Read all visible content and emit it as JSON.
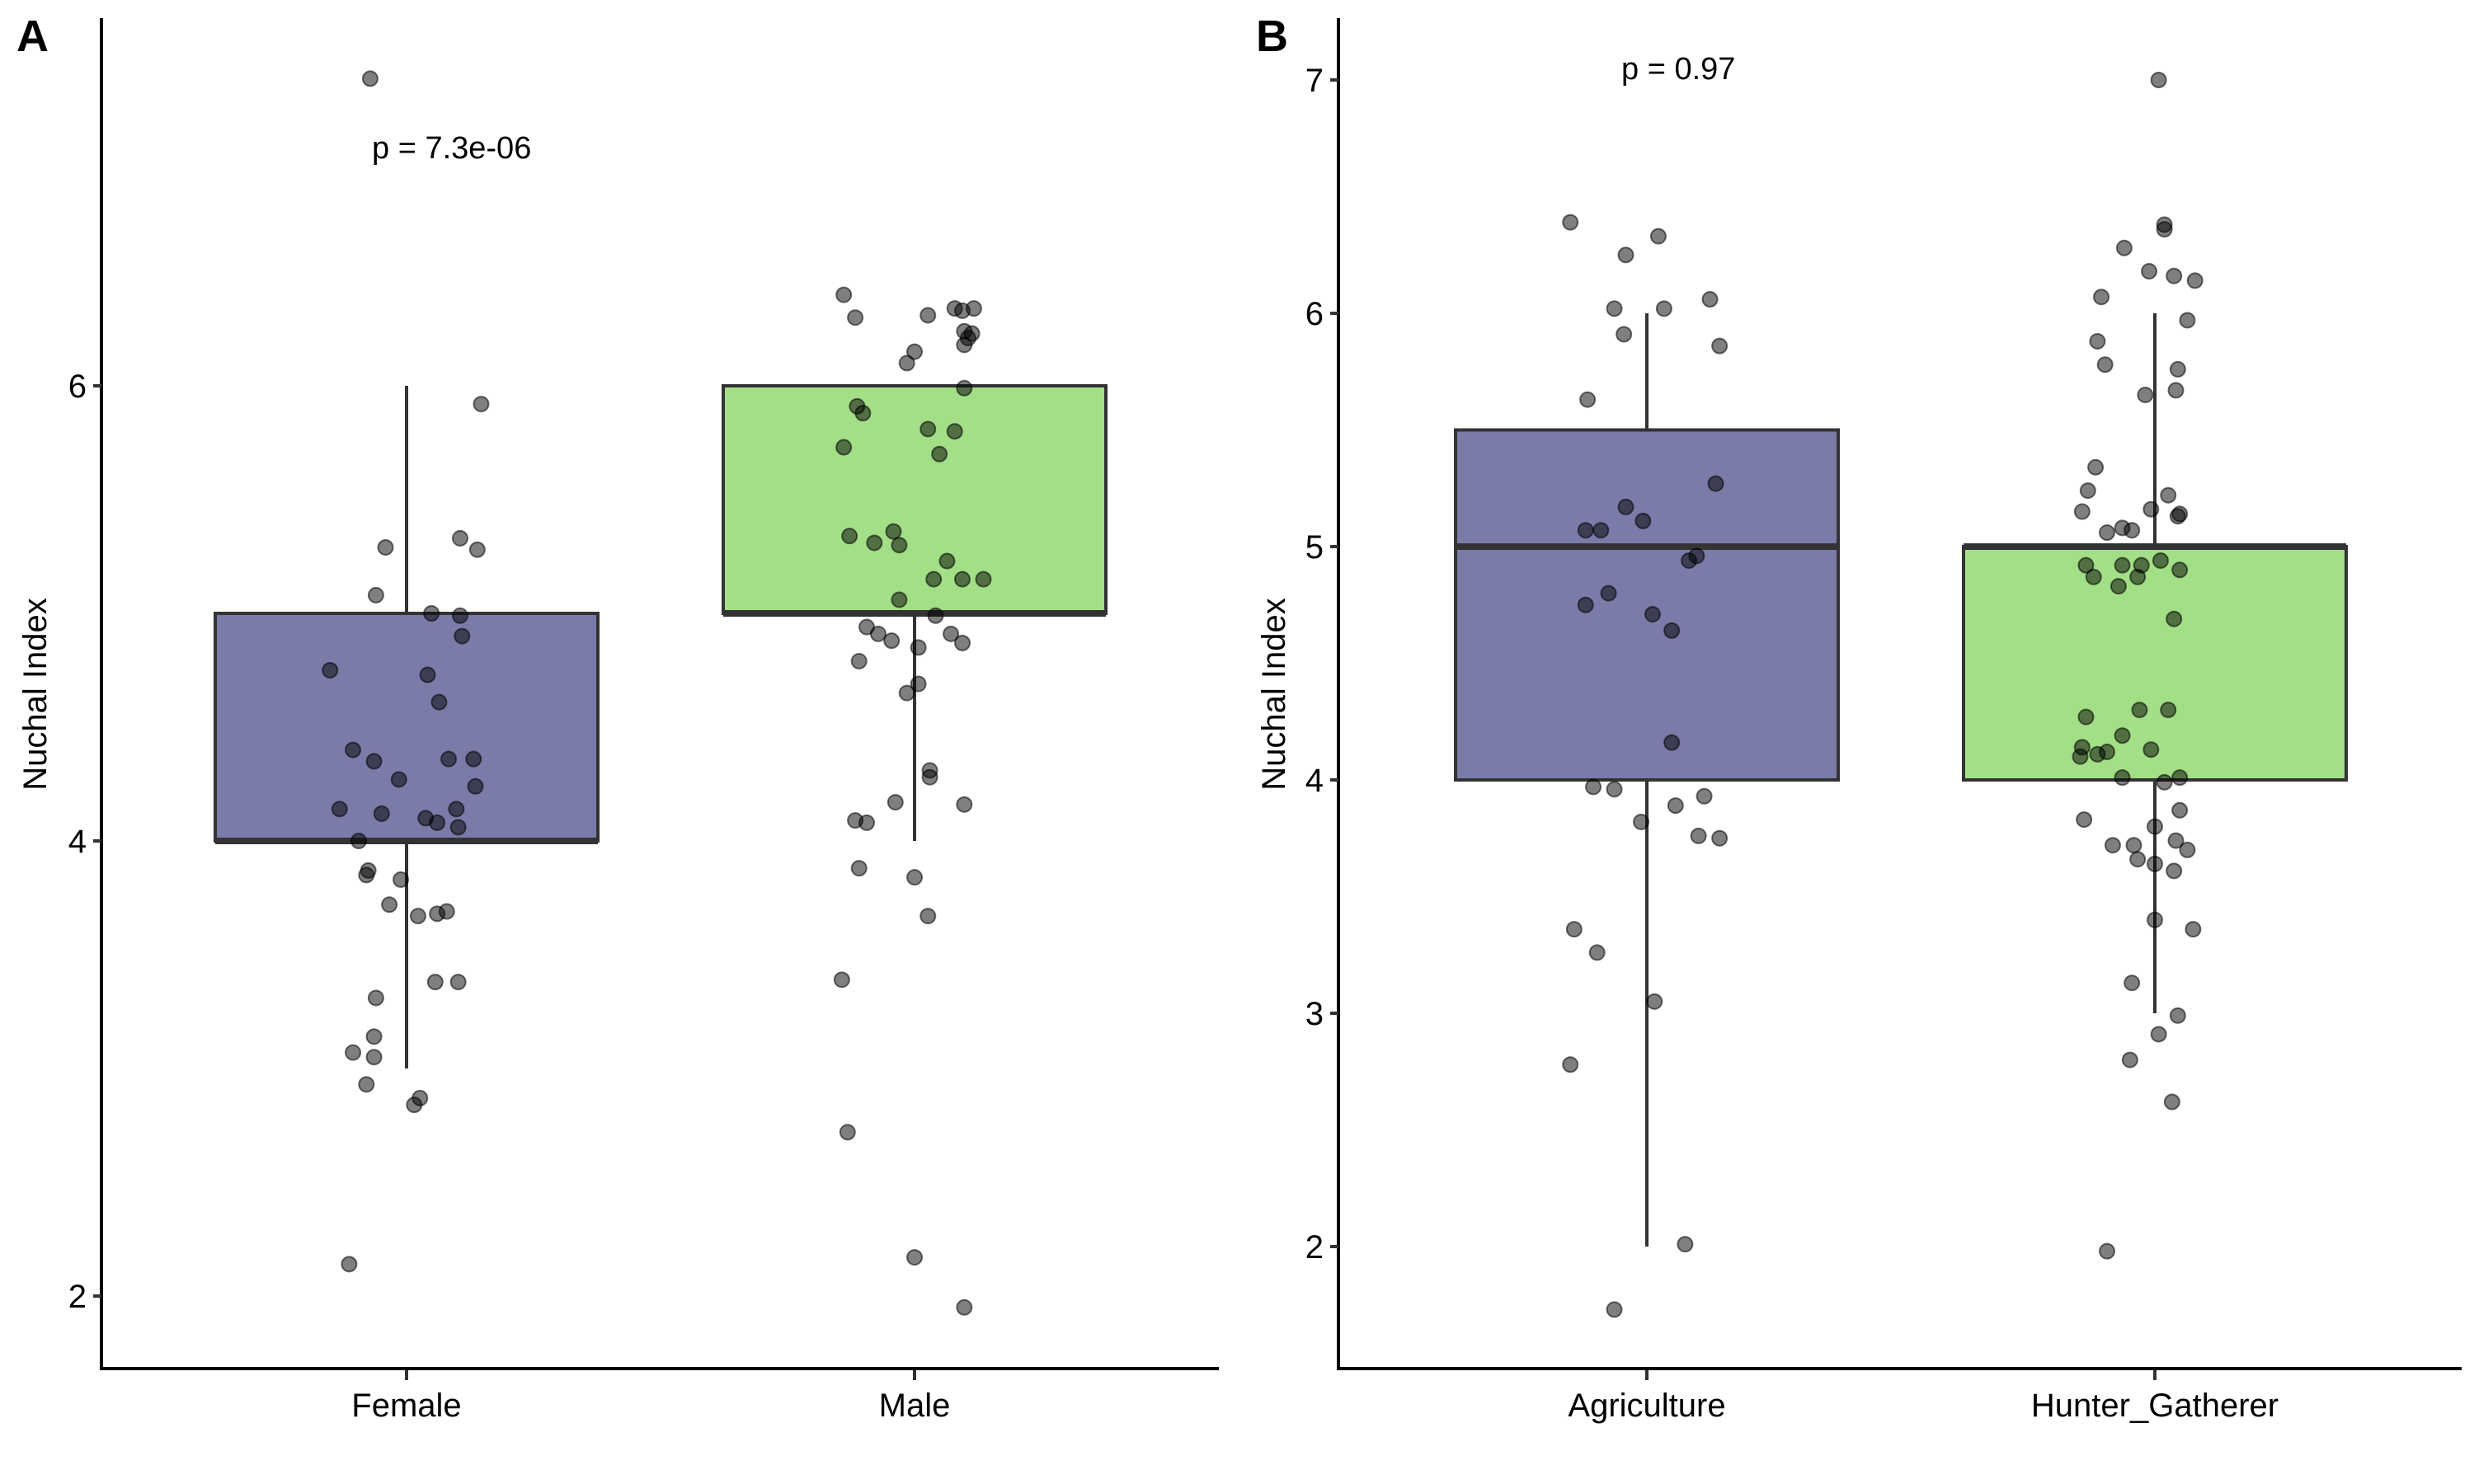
{
  "chart_data": [
    {
      "type": "boxplot",
      "panel_tag": "A",
      "title": "",
      "xlabel": "",
      "ylabel": "Nuchal Index",
      "ylim": [
        1.75,
        7.5
      ],
      "yticks": [
        2,
        4,
        6
      ],
      "annotation": "p = 7.3e-06",
      "grid": false,
      "categories": [
        "Female",
        "Male"
      ],
      "colors": [
        "#7B7BA9",
        "#A2DF86"
      ],
      "boxes": [
        {
          "category": "Female",
          "whisker_low": 3,
          "q1": 4,
          "median": 4,
          "q3": 5,
          "whisker_high": 6
        },
        {
          "category": "Male",
          "whisker_low": 4,
          "q1": 5,
          "median": 5,
          "q3": 6,
          "whisker_high": 6
        }
      ],
      "points": [
        {
          "category": "Female",
          "values": [
            7.35,
            5.92,
            5.29,
            5.33,
            5.28,
            5.08,
            5.0,
            4.99,
            4.9,
            4.75,
            4.73,
            4.61,
            4.4,
            4.35,
            4.36,
            4.36,
            4.27,
            4.24,
            4.14,
            4.12,
            4.14,
            4.1,
            4.08,
            4.06,
            4.0,
            3.87,
            3.85,
            3.83,
            3.72,
            3.67,
            3.68,
            3.69,
            3.31,
            3.38,
            3.38,
            3.14,
            3.07,
            3.05,
            2.93,
            2.87,
            2.84,
            2.14
          ],
          "jitter": [
            -0.19,
            0.39,
            -0.11,
            0.28,
            0.37,
            -0.16,
            0.13,
            0.28,
            0.29,
            -0.4,
            0.11,
            0.17,
            -0.28,
            -0.17,
            0.22,
            0.35,
            -0.04,
            0.36,
            -0.35,
            -0.13,
            0.26,
            0.1,
            0.16,
            0.27,
            -0.25,
            -0.2,
            -0.21,
            -0.03,
            -0.09,
            0.06,
            0.16,
            0.21,
            -0.16,
            0.27,
            0.15,
            -0.17,
            -0.28,
            -0.17,
            -0.21,
            0.07,
            0.04,
            -0.3
          ]
        },
        {
          "category": "Male",
          "values": [
            6.4,
            6.3,
            6.31,
            6.34,
            6.33,
            6.34,
            6.24,
            6.21,
            6.18,
            6.23,
            6.15,
            6.1,
            5.99,
            5.91,
            5.88,
            5.81,
            5.8,
            5.73,
            5.7,
            5.34,
            5.36,
            5.31,
            5.3,
            5.23,
            5.15,
            5.15,
            5.15,
            5.06,
            4.99,
            4.94,
            4.91,
            4.88,
            4.91,
            4.87,
            4.85,
            4.79,
            4.69,
            4.65,
            4.31,
            4.28,
            4.17,
            4.16,
            4.09,
            4.08,
            3.88,
            3.84,
            3.67,
            3.39,
            2.72,
            2.17,
            1.95
          ],
          "jitter": [
            -0.37,
            -0.31,
            0.07,
            0.21,
            0.25,
            0.31,
            0.26,
            0.28,
            0.26,
            0.3,
            0.0,
            -0.04,
            0.26,
            -0.3,
            -0.27,
            0.07,
            0.21,
            -0.37,
            0.13,
            -0.34,
            -0.11,
            -0.21,
            -0.08,
            0.17,
            0.1,
            0.25,
            0.36,
            -0.08,
            0.11,
            -0.25,
            -0.19,
            -0.12,
            0.19,
            0.25,
            0.02,
            -0.29,
            0.02,
            -0.04,
            0.08,
            0.08,
            -0.1,
            0.26,
            -0.31,
            -0.25,
            -0.29,
            0.0,
            0.07,
            -0.38,
            -0.35,
            0.0,
            0.26
          ]
        }
      ]
    },
    {
      "type": "boxplot",
      "panel_tag": "B",
      "title": "",
      "xlabel": "",
      "ylabel": "Nuchal Index",
      "ylim": [
        1.5,
        7.25
      ],
      "yticks": [
        2,
        3,
        4,
        5,
        6,
        7
      ],
      "annotation": "p = 0.97",
      "grid": false,
      "categories": [
        "Agriculture",
        "Hunter_Gatherer"
      ],
      "colors": [
        "#7B7BA9",
        "#A2DF86"
      ],
      "boxes": [
        {
          "category": "Agriculture",
          "whisker_low": 2,
          "q1": 4,
          "median": 5,
          "q3": 5.5,
          "whisker_high": 6
        },
        {
          "category": "Hunter_Gatherer",
          "whisker_low": 3,
          "q1": 4,
          "median": 5,
          "q3": 5,
          "whisker_high": 6
        }
      ],
      "points": [
        {
          "category": "Agriculture",
          "values": [
            6.39,
            6.33,
            6.25,
            6.02,
            6.02,
            6.06,
            5.91,
            5.86,
            5.63,
            5.27,
            5.17,
            5.07,
            5.07,
            5.11,
            4.96,
            4.94,
            4.8,
            4.75,
            4.71,
            4.64,
            4.16,
            3.97,
            3.96,
            3.93,
            3.89,
            3.82,
            3.76,
            3.75,
            3.36,
            3.26,
            3.05,
            2.78,
            2.01,
            1.73
          ],
          "jitter": [
            -0.4,
            0.06,
            -0.11,
            -0.17,
            0.09,
            0.33,
            -0.12,
            0.38,
            -0.31,
            0.36,
            -0.11,
            -0.32,
            -0.24,
            -0.02,
            0.26,
            0.22,
            -0.2,
            -0.32,
            0.03,
            0.13,
            0.13,
            -0.28,
            -0.17,
            0.3,
            0.15,
            -0.03,
            0.27,
            0.38,
            -0.38,
            -0.26,
            0.04,
            -0.4,
            0.2,
            -0.17
          ],
          "overlap_note": ""
        },
        {
          "category": "Hunter_Gatherer",
          "values": [
            7.0,
            6.38,
            6.36,
            6.28,
            6.18,
            6.16,
            6.14,
            6.07,
            5.97,
            5.88,
            5.78,
            5.76,
            5.65,
            5.67,
            5.34,
            5.24,
            5.22,
            5.16,
            5.15,
            5.14,
            5.13,
            5.06,
            5.08,
            5.07,
            4.94,
            4.92,
            4.92,
            4.9,
            4.87,
            4.87,
            4.83,
            4.92,
            4.69,
            4.27,
            4.3,
            4.3,
            4.19,
            4.14,
            4.12,
            4.13,
            4.1,
            4.11,
            4.01,
            3.99,
            4.01,
            3.83,
            3.8,
            3.87,
            3.72,
            3.72,
            3.74,
            3.66,
            3.64,
            3.61,
            3.7,
            3.4,
            3.36,
            3.13,
            2.99,
            2.91,
            2.8,
            2.62,
            1.98
          ],
          "jitter": [
            0.02,
            0.05,
            0.05,
            -0.16,
            -0.03,
            0.1,
            0.21,
            -0.28,
            0.17,
            -0.3,
            -0.26,
            0.12,
            -0.05,
            0.11,
            -0.31,
            -0.35,
            0.07,
            -0.02,
            -0.38,
            0.13,
            0.12,
            -0.25,
            -0.17,
            -0.12,
            0.03,
            -0.36,
            -0.17,
            0.13,
            -0.32,
            -0.09,
            -0.19,
            -0.07,
            0.1,
            -0.36,
            -0.08,
            0.07,
            -0.17,
            -0.38,
            -0.25,
            -0.02,
            -0.39,
            -0.3,
            -0.17,
            0.05,
            0.13,
            -0.37,
            0.0,
            0.13,
            -0.22,
            -0.11,
            0.11,
            -0.09,
            0.0,
            0.1,
            0.17,
            0.0,
            0.2,
            -0.12,
            0.12,
            0.02,
            -0.13,
            0.09,
            -0.25
          ]
        }
      ]
    }
  ]
}
